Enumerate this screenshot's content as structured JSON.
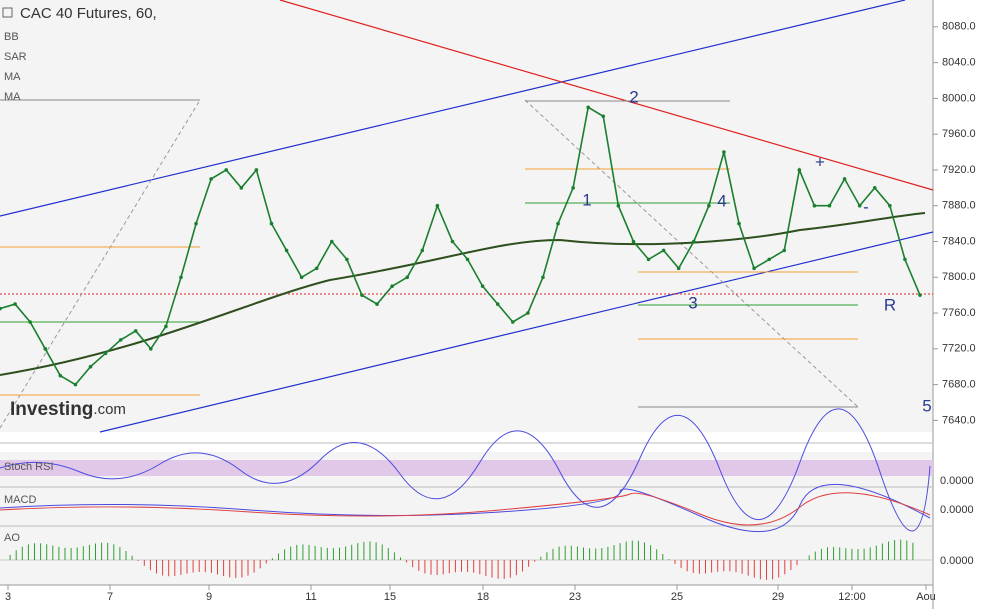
{
  "chart_data": {
    "type": "line",
    "title": "CAC 40 Futures, 60,",
    "indicators": [
      "BB",
      "SAR",
      "MA",
      "MA"
    ],
    "panes": [
      {
        "label": "Stoch RSI",
        "tick": "0.0000"
      },
      {
        "label": "MACD",
        "tick": "0.0000"
      },
      {
        "label": "AO",
        "tick": "0.0000"
      }
    ],
    "x_labels": [
      "3",
      "7",
      "9",
      "11",
      "15",
      "18",
      "23",
      "25",
      "29",
      "12:00",
      "Aou"
    ],
    "annotations": [
      "1",
      "2",
      "3",
      "4",
      "5",
      "R",
      "+",
      "-"
    ],
    "brand": [
      "Investing",
      ".com"
    ],
    "color": "#1a7f2e",
    "values": [
      7765,
      7770,
      7750,
      7720,
      7690,
      7680,
      7700,
      7715,
      7730,
      7740,
      7720,
      7745,
      7800,
      7860,
      7910,
      7920,
      7900,
      7920,
      7860,
      7830,
      7800,
      7810,
      7840,
      7820,
      7780,
      7770,
      7790,
      7800,
      7830,
      7880,
      7840,
      7820,
      7790,
      7770,
      7750,
      7760,
      7800,
      7860,
      7900,
      7990,
      7980,
      7880,
      7840,
      7820,
      7830,
      7810,
      7840,
      7880,
      7940,
      7860,
      7810,
      7820,
      7830,
      7920,
      7880,
      7880,
      7910,
      7880,
      7900,
      7880,
      7820,
      7780
    ],
    "ylim": [
      7627,
      8110
    ],
    "yticks": [
      {
        "value": 7640,
        "label": "7640.0"
      },
      {
        "value": 7680,
        "label": "7680.0"
      },
      {
        "value": 7720,
        "label": "7720.0"
      },
      {
        "value": 7760,
        "label": "7760.0"
      },
      {
        "value": 7800,
        "label": "7800.0"
      },
      {
        "value": 7840,
        "label": "7840.0"
      },
      {
        "value": 7880,
        "label": "7880.0"
      },
      {
        "value": 7920,
        "label": "7920.0"
      },
      {
        "value": 7960,
        "label": "7960.0"
      },
      {
        "value": 8000,
        "label": "8000.0"
      },
      {
        "value": 8040,
        "label": "8040.0"
      },
      {
        "value": 8080,
        "label": "8080.0"
      }
    ]
  }
}
